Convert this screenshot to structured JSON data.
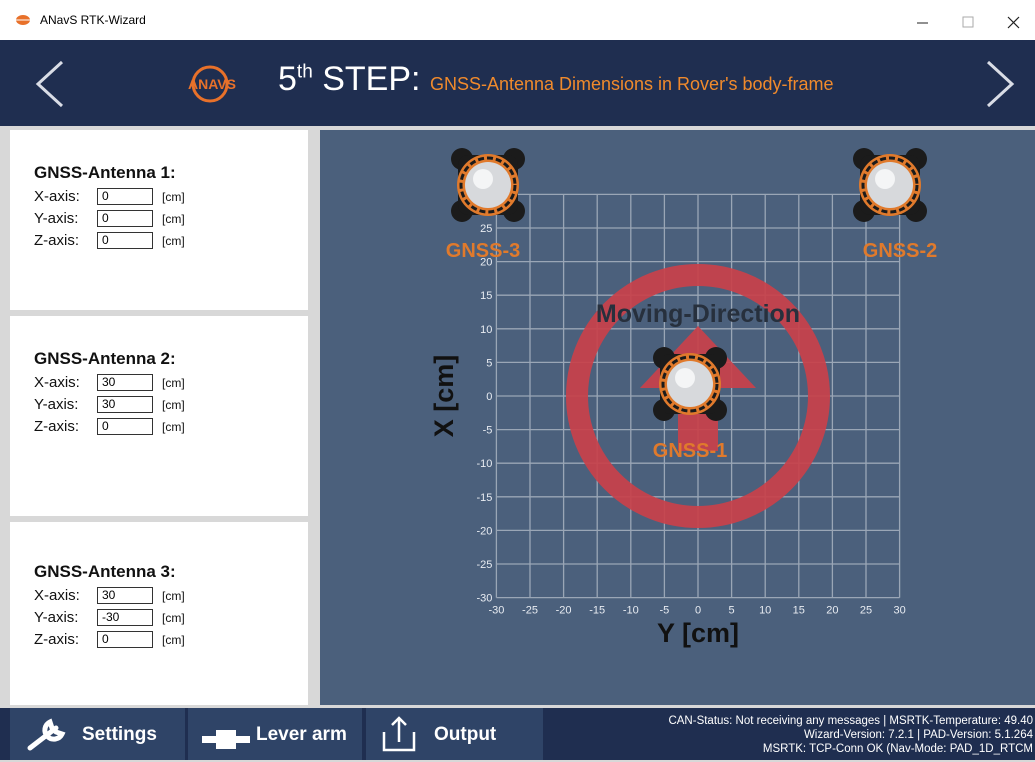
{
  "window": {
    "title": "ANavS RTK-Wizard"
  },
  "header": {
    "logo": "ANAVS",
    "step_number": 5,
    "step_suffix": "th",
    "step_word": "STEP:",
    "step_title": "GNSS-Antenna Dimensions in Rover's body-frame"
  },
  "antennas": [
    {
      "title": "GNSS-Antenna 1:",
      "fields": [
        {
          "label": "X-axis:",
          "value": 0,
          "unit": "[cm]"
        },
        {
          "label": "Y-axis:",
          "value": 0,
          "unit": "[cm]"
        },
        {
          "label": "Z-axis:",
          "value": 0,
          "unit": "[cm]"
        }
      ]
    },
    {
      "title": "GNSS-Antenna 2:",
      "fields": [
        {
          "label": "X-axis:",
          "value": 30,
          "unit": "[cm]"
        },
        {
          "label": "Y-axis:",
          "value": 30,
          "unit": "[cm]"
        },
        {
          "label": "Z-axis:",
          "value": 0,
          "unit": "[cm]"
        }
      ]
    },
    {
      "title": "GNSS-Antenna 3:",
      "fields": [
        {
          "label": "X-axis:",
          "value": 30,
          "unit": "[cm]"
        },
        {
          "label": "Y-axis:",
          "value": -30,
          "unit": "[cm]"
        },
        {
          "label": "Z-axis:",
          "value": 0,
          "unit": "[cm]"
        }
      ]
    }
  ],
  "diagram": {
    "heading": "Moving-Direction",
    "x_axis_label": "Y [cm]",
    "y_axis_label": "X [cm]",
    "xticks": [
      -30,
      -25,
      -20,
      -15,
      -10,
      -5,
      0,
      5,
      10,
      15,
      20,
      25,
      30
    ],
    "yticks": [
      25,
      20,
      15,
      10,
      5,
      0,
      -5,
      -10,
      -15,
      -20,
      -25,
      -30
    ],
    "antenna_labels": [
      "GNSS-1",
      "GNSS-2",
      "GNSS-3"
    ]
  },
  "footer": {
    "buttons": [
      "Settings",
      "Lever arm",
      "Output"
    ],
    "status": [
      "CAN-Status: Not receiving any messages | MSRTK-Temperature: 49.40",
      "Wizard-Version: 7.2.1 | PAD-Version: 5.1.264",
      "MSRTK: TCP-Conn OK (Nav-Mode: PAD_1D_RTCM"
    ]
  }
}
